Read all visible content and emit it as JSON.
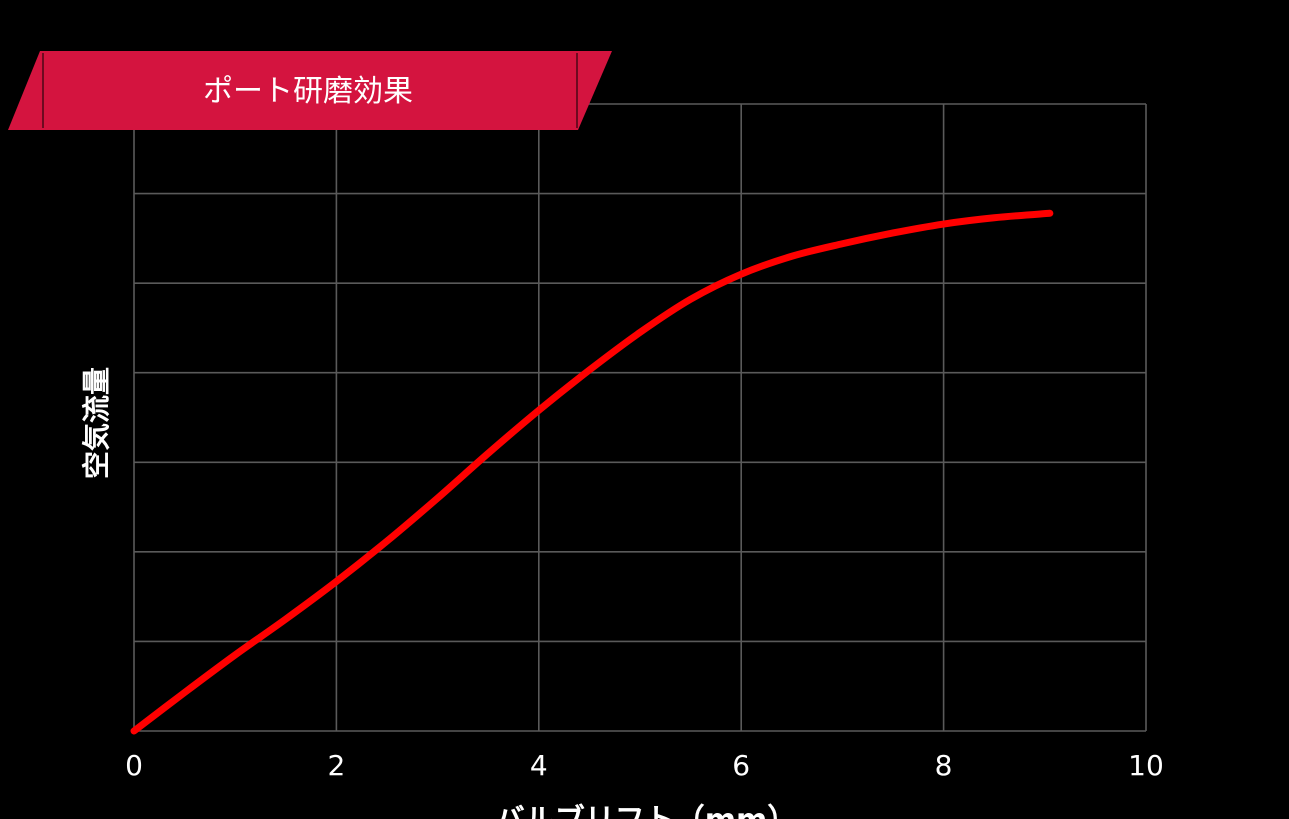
{
  "banner": {
    "text": "ポート研磨効果",
    "color": "#d4143f"
  },
  "chart_data": {
    "type": "line",
    "title": "ポート研磨効果",
    "xlabel": "バルブリフト（mm）",
    "ylabel": "空気流量",
    "xlim": [
      0,
      10
    ],
    "x_ticks": [
      "0",
      "2",
      "4",
      "6",
      "8",
      "10"
    ],
    "ylim": [
      0,
      7
    ],
    "y_grid_lines": 7,
    "y_tick_labels_shown": false,
    "grid": true,
    "background": "#000000",
    "grid_color": "#5a5a5a",
    "series": [
      {
        "color": "#ff0000",
        "x": [
          0,
          0.5,
          1,
          1.5,
          2,
          2.5,
          3,
          3.5,
          4,
          4.5,
          5,
          5.5,
          6,
          6.5,
          7,
          7.5,
          8,
          8.5,
          9.05
        ],
        "y": [
          0,
          0.43,
          0.85,
          1.25,
          1.67,
          2.12,
          2.6,
          3.1,
          3.58,
          4.03,
          4.45,
          4.82,
          5.1,
          5.3,
          5.44,
          5.56,
          5.66,
          5.73,
          5.78
        ]
      }
    ]
  }
}
